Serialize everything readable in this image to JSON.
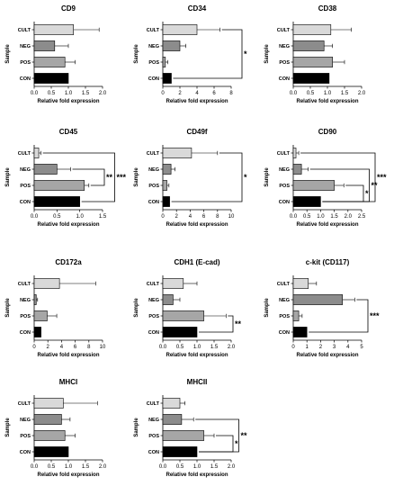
{
  "chart_data": [
    {
      "type": "bar",
      "title": "CD9",
      "xlabel": "Relative fold expression",
      "ylabel": "Sample",
      "categories": [
        "CULT",
        "NEG",
        "POS",
        "CON"
      ],
      "values": [
        1.15,
        0.6,
        0.9,
        1.0
      ],
      "errors": [
        0.75,
        0.4,
        0.3,
        0
      ],
      "xlim": [
        0,
        2
      ],
      "xticks": [
        "0.0",
        "0.5",
        "1.0",
        "1.5",
        "2.0"
      ],
      "significance": []
    },
    {
      "type": "bar",
      "title": "CD34",
      "xlabel": "Relative fold expression",
      "ylabel": "Sample",
      "categories": [
        "CULT",
        "NEG",
        "POS",
        "CON"
      ],
      "values": [
        4.0,
        2.0,
        0.3,
        1.0
      ],
      "errors": [
        2.7,
        0.7,
        0.3,
        0
      ],
      "xlim": [
        0,
        8
      ],
      "xticks": [
        "0",
        "2",
        "4",
        "6",
        "8"
      ],
      "significance": [
        {
          "from": "CULT",
          "to": "CON",
          "label": "*"
        }
      ]
    },
    {
      "type": "bar",
      "title": "CD38",
      "xlabel": "Relative fold expression",
      "ylabel": "Sample",
      "categories": [
        "CULT",
        "NEG",
        "POS",
        "CON"
      ],
      "values": [
        1.1,
        0.9,
        1.15,
        1.05
      ],
      "errors": [
        0.6,
        0.25,
        0.35,
        0
      ],
      "xlim": [
        0,
        2
      ],
      "xticks": [
        "0.0",
        "0.5",
        "1.0",
        "1.5",
        "2.0"
      ],
      "significance": []
    },
    {
      "type": "bar",
      "title": "CD45",
      "xlabel": "Relative fold expression",
      "ylabel": "Sample",
      "categories": [
        "CULT",
        "NEG",
        "POS",
        "CON"
      ],
      "values": [
        0.1,
        0.5,
        1.1,
        1.0
      ],
      "errors": [
        0.05,
        0.3,
        0.1,
        0
      ],
      "xlim": [
        0,
        1.5
      ],
      "xticks": [
        "0.0",
        "0.5",
        "1.0",
        "1.5"
      ],
      "significance": [
        {
          "from": "NEG",
          "to": "POS",
          "label": "**"
        },
        {
          "from": "CULT",
          "to": "CON",
          "label": "***"
        }
      ]
    },
    {
      "type": "bar",
      "title": "CD49f",
      "xlabel": "Relative fold expression",
      "ylabel": "Sample",
      "categories": [
        "CULT",
        "NEG",
        "POS",
        "CON"
      ],
      "values": [
        4.2,
        1.2,
        0.6,
        1.0
      ],
      "errors": [
        3.8,
        0.6,
        0.3,
        0
      ],
      "xlim": [
        0,
        10
      ],
      "xticks": [
        "0",
        "2",
        "4",
        "6",
        "8",
        "10"
      ],
      "significance": [
        {
          "from": "CULT",
          "to": "CON",
          "label": "*"
        }
      ]
    },
    {
      "type": "bar",
      "title": "CD90",
      "xlabel": "Relative fold expression",
      "ylabel": "Sample",
      "categories": [
        "CULT",
        "NEG",
        "POS",
        "CON"
      ],
      "values": [
        0.1,
        0.3,
        1.5,
        1.0
      ],
      "errors": [
        0.1,
        0.25,
        0.35,
        0
      ],
      "xlim": [
        0,
        2.5
      ],
      "xticks": [
        "0.0",
        "0.5",
        "1.0",
        "1.5",
        "2.0",
        "2.5"
      ],
      "significance": [
        {
          "from": "POS",
          "to": "CON",
          "label": "*"
        },
        {
          "from": "NEG",
          "to": "CON",
          "label": "**"
        },
        {
          "from": "CULT",
          "to": "CON",
          "label": "***"
        }
      ]
    },
    {
      "type": "bar",
      "title": "CD172a",
      "xlabel": "Relative fold expression",
      "ylabel": "Sample",
      "categories": [
        "CULT",
        "NEG",
        "POS",
        "CON"
      ],
      "values": [
        3.7,
        0.3,
        1.9,
        1.0
      ],
      "errors": [
        5.3,
        0.2,
        1.4,
        0
      ],
      "xlim": [
        0,
        10
      ],
      "xticks": [
        "0",
        "2",
        "4",
        "6",
        "8",
        "10"
      ],
      "significance": []
    },
    {
      "type": "bar",
      "title": "CDH1 (E-cad)",
      "xlabel": "Relative fold expression",
      "ylabel": "Sample",
      "categories": [
        "CULT",
        "NEG",
        "POS",
        "CON"
      ],
      "values": [
        0.6,
        0.3,
        1.2,
        1.0
      ],
      "errors": [
        0.4,
        0.2,
        0.65,
        0
      ],
      "xlim": [
        0,
        2
      ],
      "xticks": [
        "0.0",
        "0.5",
        "1.0",
        "1.5",
        "2.0"
      ],
      "significance": [
        {
          "from": "POS",
          "to": "CON",
          "label": "**"
        }
      ]
    },
    {
      "type": "bar",
      "title": "c-kit (CD117)",
      "xlabel": "Relative fold expression",
      "ylabel": "Sample",
      "categories": [
        "CULT",
        "NEG",
        "POS",
        "CON"
      ],
      "values": [
        1.1,
        3.6,
        0.4,
        1.0
      ],
      "errors": [
        0.6,
        0.9,
        0.25,
        0
      ],
      "xlim": [
        0,
        5
      ],
      "xticks": [
        "0",
        "1",
        "2",
        "3",
        "4",
        "5"
      ],
      "significance": [
        {
          "from": "NEG",
          "to": "CON",
          "label": "***"
        }
      ]
    },
    {
      "type": "bar",
      "title": "MHCI",
      "xlabel": "Relative fold expression",
      "ylabel": "Sample",
      "categories": [
        "CULT",
        "NEG",
        "POS",
        "CON"
      ],
      "values": [
        0.85,
        0.8,
        0.9,
        1.0
      ],
      "errors": [
        1.0,
        0.25,
        0.3,
        0
      ],
      "xlim": [
        0,
        2
      ],
      "xticks": [
        "0.0",
        "0.5",
        "1.0",
        "1.5",
        "2.0"
      ],
      "significance": []
    },
    {
      "type": "bar",
      "title": "MHCII",
      "xlabel": "Relative fold expression",
      "ylabel": "Sample",
      "categories": [
        "CULT",
        "NEG",
        "POS",
        "CON"
      ],
      "values": [
        0.5,
        0.55,
        1.2,
        1.0
      ],
      "errors": [
        0.15,
        0.35,
        0.3,
        0
      ],
      "xlim": [
        0,
        2
      ],
      "xticks": [
        "0.0",
        "0.5",
        "1.0",
        "1.5",
        "2.0"
      ],
      "significance": [
        {
          "from": "POS",
          "to": "CON",
          "label": "*"
        },
        {
          "from": "NEG",
          "to": "CON",
          "label": "**"
        }
      ]
    }
  ],
  "colors": {
    "CULT": "#d9d9d9",
    "NEG": "#8c8c8c",
    "POS": "#a6a6a6",
    "CON": "#000000",
    "stroke": "#000000"
  }
}
